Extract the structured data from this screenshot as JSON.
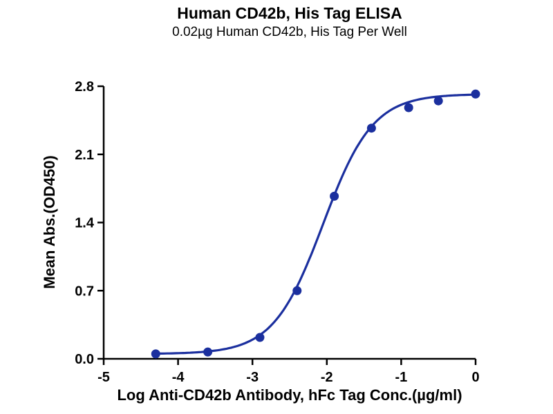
{
  "chart_data": {
    "type": "scatter",
    "title": "Human CD42b, His Tag ELISA",
    "subtitle": "0.02µg Human CD42b, His Tag Per Well",
    "xlabel": "Log Anti-CD42b Antibody, hFc Tag Conc.(µg/ml)",
    "ylabel": "Mean Abs.(OD450)",
    "xlim": [
      -5,
      0
    ],
    "ylim": [
      0,
      2.8
    ],
    "xticks": [
      -5,
      -4,
      -3,
      -2,
      -1,
      0
    ],
    "yticks": [
      0,
      0.7,
      1.4,
      2.1,
      2.8
    ],
    "grid": false,
    "legend": false,
    "color": "#1b2f9e",
    "points": [
      {
        "x": -4.3,
        "y": 0.05
      },
      {
        "x": -3.6,
        "y": 0.07
      },
      {
        "x": -2.9,
        "y": 0.22
      },
      {
        "x": -2.4,
        "y": 0.7
      },
      {
        "x": -1.9,
        "y": 1.67
      },
      {
        "x": -1.4,
        "y": 2.37
      },
      {
        "x": -0.9,
        "y": 2.58
      },
      {
        "x": -0.5,
        "y": 2.65
      },
      {
        "x": 0,
        "y": 2.72
      }
    ],
    "fit": {
      "bottom": 0.05,
      "top": 2.72,
      "logEC50": -2.05,
      "hill": 1.3
    }
  }
}
